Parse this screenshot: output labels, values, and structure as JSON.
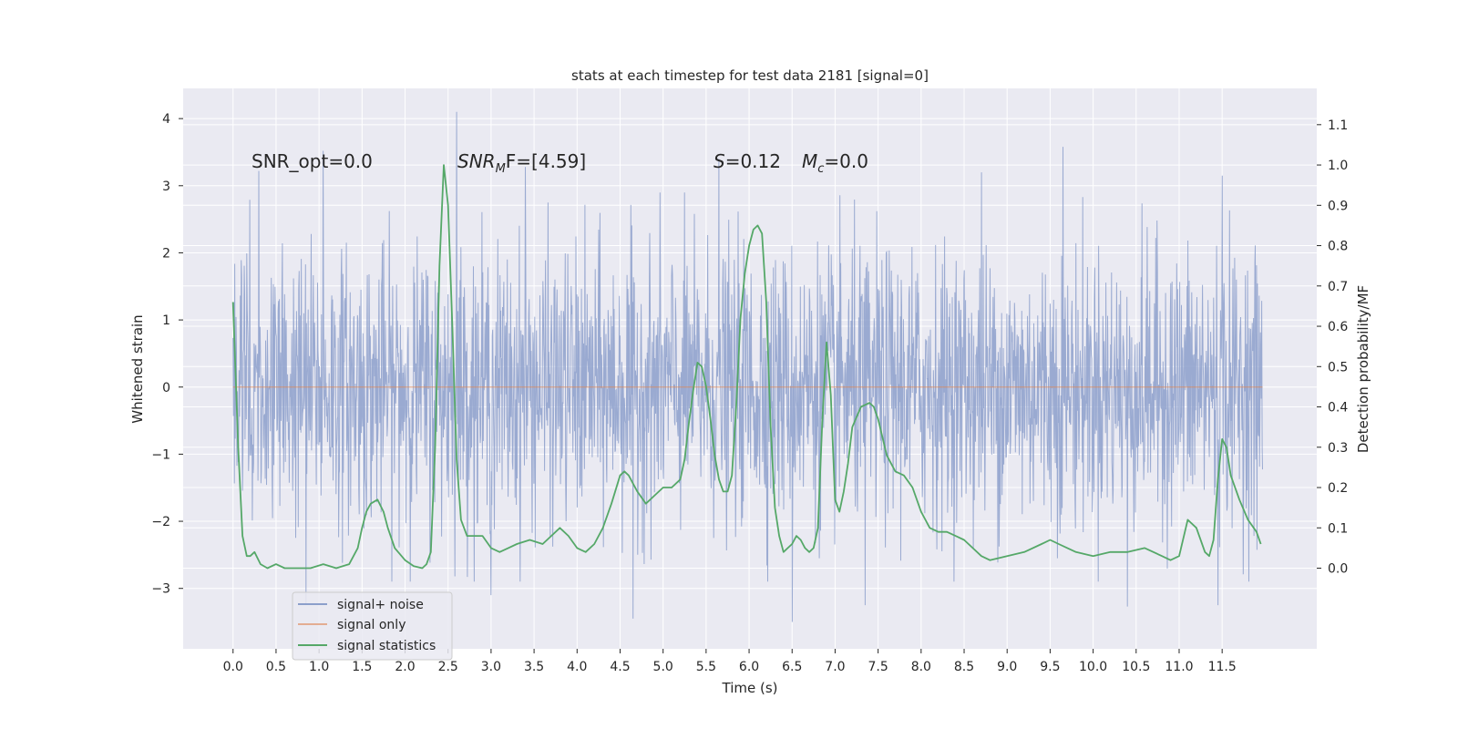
{
  "chart_data": {
    "type": "line",
    "title": "stats at each timestep for test data 2181 [signal=0]",
    "xlabel": "Time (s)",
    "ylabel": "Whitened strain",
    "ylabel_right": "Detection probability/MF",
    "xlim": [
      -0.58,
      12.6
    ],
    "ylim": [
      -3.9,
      4.45
    ],
    "ylim_right": [
      -0.2,
      1.19
    ],
    "x_ticks": [
      0.0,
      0.5,
      1.0,
      1.5,
      2.0,
      2.5,
      3.0,
      3.5,
      4.0,
      4.5,
      5.0,
      5.5,
      6.0,
      6.5,
      7.0,
      7.5,
      8.0,
      8.5,
      9.0,
      9.5,
      10.0,
      10.5,
      11.0,
      11.5
    ],
    "x_tick_labels": [
      "0.0",
      "0.5",
      "1.0",
      "1.5",
      "2.0",
      "2.5",
      "3.0",
      "3.5",
      "4.0",
      "4.5",
      "5.0",
      "5.5",
      "6.0",
      "6.5",
      "7.0",
      "7.5",
      "8.0",
      "8.5",
      "9.0",
      "9.5",
      "10.0",
      "10.5",
      "11.0",
      "11.5"
    ],
    "y_ticks": [
      -3,
      -2,
      -1,
      0,
      1,
      2,
      3,
      4
    ],
    "y_tick_labels": [
      "−3",
      "−2",
      "−1",
      "0",
      "1",
      "2",
      "3",
      "4"
    ],
    "y_right_ticks": [
      0.0,
      0.1,
      0.2,
      0.3,
      0.4,
      0.5,
      0.6,
      0.7,
      0.8,
      0.9,
      1.0,
      1.1
    ],
    "y_right_tick_labels": [
      "0.0",
      "0.1",
      "0.2",
      "0.3",
      "0.4",
      "0.5",
      "0.6",
      "0.7",
      "0.8",
      "0.9",
      "1.0",
      "1.1"
    ],
    "annotations": {
      "snr_opt": "SNR_opt=0.0",
      "snr_mf_base": "SNR",
      "snr_mf_sub": "M",
      "snr_mf_rest": "F=[4.59]",
      "s_stat": "=0.12",
      "s_var": "S",
      "mc_var": "M",
      "mc_sub": "c",
      "mc_value": "=0.0"
    },
    "legend": {
      "position": "lower-left",
      "entries": [
        "signal+ noise",
        "signal only",
        "signal statistics"
      ]
    },
    "series": [
      {
        "name": "signal+ noise",
        "color": "#8c9fcb",
        "t_range": [
          0.0,
          11.97
        ],
        "envelope_mean": 0.0,
        "envelope_std": 1.0,
        "peaks": [
          {
            "t": 2.6,
            "y": 4.1
          },
          {
            "t": 9.65,
            "y": 3.58
          },
          {
            "t": 1.05,
            "y": 3.52
          },
          {
            "t": 5.65,
            "y": 3.4
          },
          {
            "t": 0.3,
            "y": 3.22
          },
          {
            "t": 3.4,
            "y": 3.28
          },
          {
            "t": 8.7,
            "y": 3.2
          },
          {
            "t": 11.5,
            "y": 3.15
          },
          {
            "t": 6.5,
            "y": -3.5
          },
          {
            "t": 4.65,
            "y": -3.45
          },
          {
            "t": 7.35,
            "y": -3.25
          },
          {
            "t": 11.45,
            "y": -3.25
          },
          {
            "t": 10.4,
            "y": -3.27
          },
          {
            "t": 0.85,
            "y": -3.25
          },
          {
            "t": 3.0,
            "y": -3.1
          }
        ]
      },
      {
        "name": "signal only",
        "color": "#dd8452",
        "x": [
          0.0,
          11.97
        ],
        "y": [
          0.0,
          0.0
        ]
      },
      {
        "name": "signal statistics",
        "color": "#55a868",
        "axis": "right",
        "x": [
          0.0,
          0.06,
          0.11,
          0.16,
          0.2,
          0.25,
          0.32,
          0.4,
          0.5,
          0.6,
          0.75,
          0.9,
          1.05,
          1.2,
          1.35,
          1.45,
          1.5,
          1.55,
          1.6,
          1.68,
          1.75,
          1.8,
          1.88,
          2.0,
          2.1,
          2.2,
          2.25,
          2.3,
          2.35,
          2.4,
          2.45,
          2.5,
          2.55,
          2.6,
          2.65,
          2.72,
          2.8,
          2.9,
          3.0,
          3.1,
          3.2,
          3.3,
          3.45,
          3.6,
          3.7,
          3.8,
          3.9,
          4.0,
          4.1,
          4.2,
          4.3,
          4.4,
          4.5,
          4.55,
          4.6,
          4.7,
          4.8,
          4.9,
          5.0,
          5.1,
          5.2,
          5.25,
          5.3,
          5.35,
          5.4,
          5.45,
          5.5,
          5.55,
          5.6,
          5.65,
          5.7,
          5.75,
          5.8,
          5.85,
          5.9,
          5.95,
          6.0,
          6.05,
          6.1,
          6.15,
          6.2,
          6.25,
          6.3,
          6.35,
          6.4,
          6.45,
          6.5,
          6.55,
          6.6,
          6.65,
          6.7,
          6.75,
          6.8,
          6.85,
          6.9,
          6.95,
          7.0,
          7.05,
          7.1,
          7.15,
          7.2,
          7.3,
          7.4,
          7.45,
          7.5,
          7.6,
          7.7,
          7.8,
          7.9,
          8.0,
          8.1,
          8.2,
          8.3,
          8.4,
          8.5,
          8.6,
          8.7,
          8.8,
          9.0,
          9.2,
          9.4,
          9.5,
          9.6,
          9.7,
          9.8,
          10.0,
          10.2,
          10.4,
          10.6,
          10.8,
          10.9,
          11.0,
          11.1,
          11.2,
          11.3,
          11.35,
          11.4,
          11.45,
          11.5,
          11.55,
          11.6,
          11.7,
          11.8,
          11.9,
          11.95
        ],
        "y": [
          0.66,
          0.3,
          0.08,
          0.03,
          0.03,
          0.04,
          0.01,
          0.0,
          0.01,
          0.0,
          0.0,
          0.0,
          0.01,
          0.0,
          0.01,
          0.05,
          0.1,
          0.14,
          0.16,
          0.17,
          0.14,
          0.1,
          0.05,
          0.02,
          0.005,
          0.0,
          0.01,
          0.04,
          0.3,
          0.75,
          1.0,
          0.9,
          0.6,
          0.27,
          0.12,
          0.08,
          0.08,
          0.08,
          0.05,
          0.04,
          0.05,
          0.06,
          0.07,
          0.06,
          0.08,
          0.1,
          0.08,
          0.05,
          0.04,
          0.06,
          0.1,
          0.16,
          0.23,
          0.24,
          0.23,
          0.19,
          0.16,
          0.18,
          0.2,
          0.2,
          0.22,
          0.27,
          0.36,
          0.44,
          0.51,
          0.5,
          0.45,
          0.37,
          0.28,
          0.22,
          0.19,
          0.19,
          0.23,
          0.4,
          0.62,
          0.73,
          0.8,
          0.84,
          0.85,
          0.83,
          0.66,
          0.35,
          0.15,
          0.08,
          0.04,
          0.05,
          0.06,
          0.08,
          0.07,
          0.05,
          0.04,
          0.05,
          0.1,
          0.36,
          0.56,
          0.43,
          0.17,
          0.14,
          0.19,
          0.26,
          0.35,
          0.4,
          0.41,
          0.4,
          0.37,
          0.28,
          0.24,
          0.23,
          0.2,
          0.14,
          0.1,
          0.09,
          0.09,
          0.08,
          0.07,
          0.05,
          0.03,
          0.02,
          0.03,
          0.04,
          0.06,
          0.07,
          0.06,
          0.05,
          0.04,
          0.03,
          0.04,
          0.04,
          0.05,
          0.03,
          0.02,
          0.03,
          0.12,
          0.1,
          0.04,
          0.03,
          0.07,
          0.22,
          0.32,
          0.3,
          0.23,
          0.17,
          0.12,
          0.09,
          0.06
        ]
      }
    ]
  }
}
